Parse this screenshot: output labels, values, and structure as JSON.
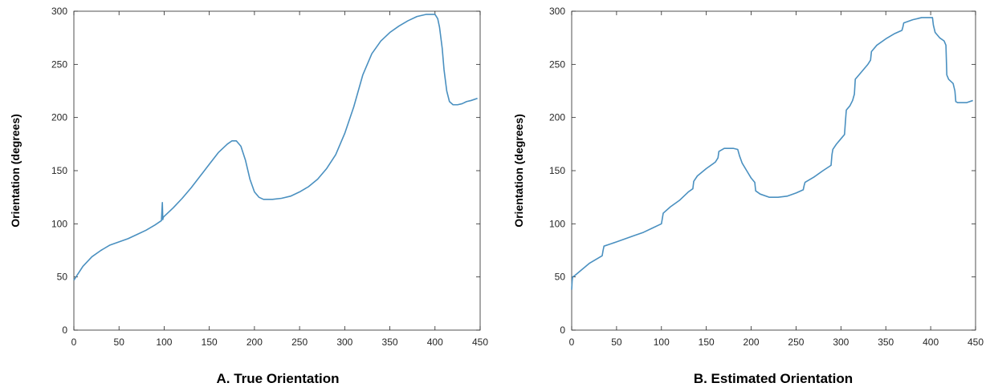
{
  "chart_data": [
    {
      "type": "line",
      "caption": "A. True Orientation",
      "title": "",
      "xlabel": "",
      "ylabel": "Orientation (degrees)",
      "xlim": [
        0,
        450
      ],
      "ylim": [
        0,
        300
      ],
      "xticks": [
        0,
        50,
        100,
        150,
        200,
        250,
        300,
        350,
        400,
        450
      ],
      "yticks": [
        0,
        50,
        100,
        150,
        200,
        250,
        300
      ],
      "grid": false,
      "legend": "none",
      "line_color": "#4a90c0",
      "series": [
        {
          "x": [
            0,
            10,
            20,
            30,
            40,
            50,
            60,
            70,
            80,
            90,
            97,
            98,
            98.5,
            99,
            100,
            110,
            120,
            130,
            140,
            150,
            160,
            170,
            175,
            180,
            185,
            190,
            195,
            200,
            205,
            210,
            215,
            220,
            230,
            240,
            250,
            260,
            270,
            280,
            290,
            300,
            310,
            320,
            330,
            340,
            350,
            360,
            370,
            380,
            390,
            395,
            400,
            403,
            405,
            408,
            410,
            413,
            416,
            420,
            425,
            430,
            435,
            440,
            447
          ],
          "y": [
            47,
            60,
            69,
            75,
            80,
            83,
            86,
            90,
            94,
            99,
            103,
            120,
            104,
            106,
            107,
            115,
            124,
            134,
            145,
            156,
            167,
            175,
            178,
            178,
            173,
            160,
            142,
            130,
            125,
            123,
            123,
            123,
            124,
            126,
            130,
            135,
            142,
            152,
            165,
            185,
            210,
            240,
            260,
            272,
            280,
            286,
            291,
            295,
            297,
            297,
            297,
            293,
            285,
            265,
            245,
            225,
            215,
            212,
            212,
            213,
            215,
            216,
            218
          ]
        }
      ]
    },
    {
      "type": "line",
      "caption": "B. Estimated Orientation",
      "title": "",
      "xlabel": "",
      "ylabel": "Orientation (degrees)",
      "xlim": [
        0,
        450
      ],
      "ylim": [
        0,
        300
      ],
      "xticks": [
        0,
        50,
        100,
        150,
        200,
        250,
        300,
        350,
        400,
        450
      ],
      "yticks": [
        0,
        50,
        100,
        150,
        200,
        250,
        300
      ],
      "grid": false,
      "legend": "none",
      "line_color": "#4a90c0",
      "series": [
        {
          "x": [
            0,
            0.5,
            1,
            3,
            10,
            20,
            34,
            35,
            36,
            50,
            60,
            70,
            80,
            90,
            100,
            101,
            102,
            110,
            120,
            130,
            135,
            136,
            140,
            150,
            160,
            163,
            164,
            170,
            180,
            185,
            187,
            190,
            195,
            200,
            204,
            205,
            210,
            220,
            230,
            240,
            250,
            258,
            259,
            260,
            270,
            280,
            289,
            290,
            291,
            295,
            300,
            304,
            305,
            306,
            310,
            313,
            315,
            316,
            320,
            325,
            330,
            333,
            334,
            340,
            350,
            360,
            368,
            369,
            370,
            380,
            390,
            400,
            402,
            403,
            405,
            410,
            415,
            417,
            418,
            420,
            425,
            427,
            428,
            430,
            440,
            447
          ],
          "y": [
            38,
            46,
            50,
            51,
            56,
            63,
            70,
            75,
            79,
            83,
            86,
            89,
            92,
            96,
            100,
            105,
            110,
            116,
            122,
            130,
            133,
            140,
            145,
            152,
            158,
            162,
            168,
            171,
            171,
            170,
            164,
            157,
            150,
            143,
            139,
            131,
            128,
            125,
            125,
            126,
            129,
            132,
            136,
            139,
            144,
            150,
            155,
            165,
            170,
            175,
            180,
            184,
            196,
            207,
            211,
            216,
            222,
            236,
            240,
            245,
            250,
            254,
            262,
            268,
            274,
            279,
            282,
            285,
            289,
            292,
            294,
            294,
            294,
            287,
            280,
            275,
            272,
            268,
            240,
            236,
            232,
            225,
            215,
            214,
            214,
            216
          ]
        }
      ]
    }
  ]
}
